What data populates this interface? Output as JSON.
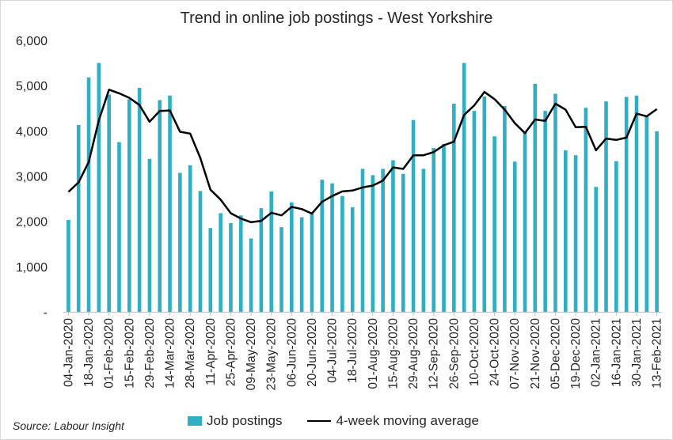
{
  "chart_data": {
    "type": "bar",
    "title": "Trend in online job postings - West Yorkshire",
    "source": "Source: Labour Insight",
    "ylim": [
      0,
      6000
    ],
    "y_ticks": [
      "-",
      "1,000",
      "2,000",
      "3,000",
      "4,000",
      "5,000",
      "6,000"
    ],
    "x_tick_labels": [
      "04-Jan-2020",
      "18-Jan-2020",
      "01-Feb-2020",
      "15-Feb-2020",
      "29-Feb-2020",
      "14-Mar-2020",
      "28-Mar-2020",
      "11-Apr-2020",
      "25-Apr-2020",
      "09-May-2020",
      "23-May-2020",
      "06-Jun-2020",
      "20-Jun-2020",
      "04-Jul-2020",
      "18-Jul-2020",
      "01-Aug-2020",
      "15-Aug-2020",
      "29-Aug-2020",
      "12-Sep-2020",
      "26-Sep-2020",
      "10-Oct-2020",
      "24-Oct-2020",
      "07-Nov-2020",
      "21-Nov-2020",
      "05-Dec-2020",
      "19-Dec-2020",
      "02-Jan-2021",
      "16-Jan-2021",
      "30-Jan-2021",
      "13-Feb-2021"
    ],
    "legend_position": "bottom",
    "grid": false,
    "series": [
      {
        "name": "Job postings",
        "type": "bar",
        "color": "#2eafc4",
        "values": [
          2030,
          4130,
          5180,
          5500,
          4800,
          3750,
          4700,
          4950,
          3380,
          4680,
          4780,
          3070,
          3240,
          2670,
          1850,
          2180,
          1960,
          2130,
          1620,
          2290,
          2660,
          1870,
          2420,
          2090,
          2170,
          2920,
          2840,
          2560,
          2310,
          3160,
          3020,
          3160,
          3350,
          3050,
          4240,
          3160,
          3620,
          3710,
          4600,
          5500,
          4440,
          4760,
          3880,
          4550,
          3320,
          3970,
          5040,
          4440,
          4820,
          3570,
          3460,
          4510,
          2760,
          4650,
          3330,
          4750,
          4780,
          4330,
          3990
        ]
      },
      {
        "name": "4-week moving average",
        "type": "line",
        "color": "#000000",
        "values": [
          2650,
          2860,
          3310,
          4230,
          4910,
          4830,
          4730,
          4570,
          4200,
          4440,
          4450,
          3980,
          3940,
          3400,
          2700,
          2480,
          2180,
          2060,
          1980,
          2010,
          2190,
          2130,
          2320,
          2270,
          2170,
          2430,
          2560,
          2660,
          2680,
          2750,
          2790,
          2900,
          3190,
          3160,
          3460,
          3460,
          3530,
          3680,
          3760,
          4350,
          4560,
          4860,
          4700,
          4470,
          4170,
          3950,
          4250,
          4220,
          4600,
          4470,
          4080,
          4090,
          3570,
          3830,
          3800,
          3850,
          4380,
          4320,
          4480
        ]
      }
    ]
  }
}
